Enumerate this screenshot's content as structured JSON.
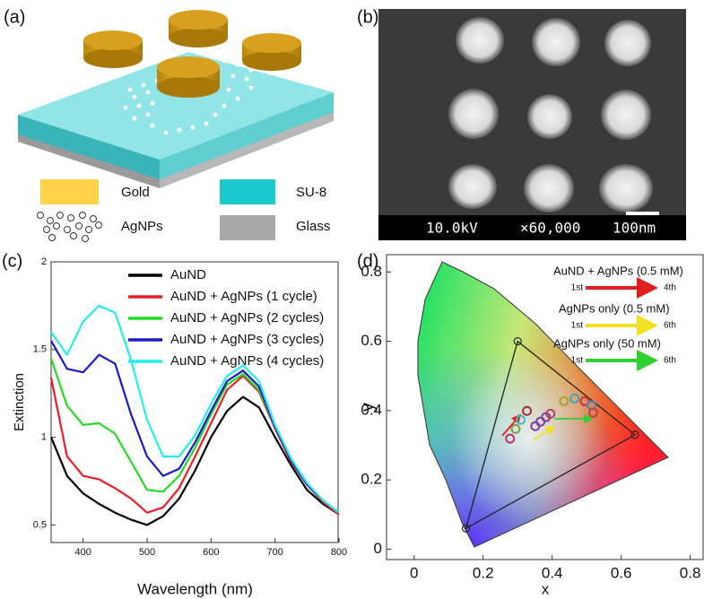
{
  "panels": [
    "(a)",
    "(b)",
    "(c)",
    "(d)"
  ],
  "schematic": {
    "legend": [
      "Gold",
      "SU-8",
      "AgNPs",
      "Glass"
    ]
  },
  "sem": {
    "voltage": "10.0kV",
    "magnification": "×60,000",
    "scale": "100nm"
  },
  "chart_data": [
    {
      "type": "line",
      "xlabel": "Wavelength (nm)",
      "ylabel": "Extinction",
      "x": [
        350,
        375,
        400,
        425,
        450,
        475,
        500,
        525,
        550,
        575,
        600,
        625,
        650,
        675,
        700,
        725,
        750,
        775,
        800
      ],
      "series": [
        {
          "name": "AuND",
          "color": "#000000",
          "values": [
            1.0,
            0.78,
            0.68,
            0.62,
            0.57,
            0.53,
            0.5,
            0.55,
            0.65,
            0.81,
            1.0,
            1.15,
            1.23,
            1.17,
            1.0,
            0.84,
            0.7,
            0.62,
            0.56
          ]
        },
        {
          "name": "AuND + AgNPs (1 cycle)",
          "color": "#ee1c25",
          "values": [
            1.34,
            0.89,
            0.78,
            0.76,
            0.71,
            0.65,
            0.57,
            0.6,
            0.71,
            0.89,
            1.08,
            1.27,
            1.35,
            1.26,
            1.05,
            0.86,
            0.73,
            0.63,
            0.56
          ]
        },
        {
          "name": "AuND + AgNPs (2 cycles)",
          "color": "#22dd22",
          "values": [
            1.45,
            1.18,
            1.07,
            1.08,
            1.02,
            0.86,
            0.7,
            0.69,
            0.78,
            0.94,
            1.13,
            1.3,
            1.36,
            1.27,
            1.06,
            0.87,
            0.73,
            0.64,
            0.57
          ]
        },
        {
          "name": "AuND + AgNPs (3 cycles)",
          "color": "#1a1acc",
          "values": [
            1.55,
            1.39,
            1.37,
            1.47,
            1.42,
            1.13,
            0.89,
            0.78,
            0.82,
            0.97,
            1.15,
            1.32,
            1.38,
            1.29,
            1.06,
            0.87,
            0.73,
            0.64,
            0.57
          ]
        },
        {
          "name": "AuND + AgNPs (4 cycles)",
          "color": "#22eeee",
          "values": [
            1.6,
            1.47,
            1.66,
            1.75,
            1.71,
            1.44,
            1.1,
            0.89,
            0.89,
            1.01,
            1.19,
            1.35,
            1.41,
            1.32,
            1.07,
            0.88,
            0.74,
            0.64,
            0.57
          ]
        }
      ],
      "xlim": [
        350,
        800
      ],
      "ylim": [
        0.4,
        2
      ],
      "xticks": [
        400,
        500,
        600,
        700,
        800
      ],
      "yticks": [
        0.5,
        1,
        1.5,
        2
      ],
      "legend": "upper right"
    },
    {
      "type": "scatter",
      "xlabel": "x",
      "ylabel": "y",
      "x": [
        0.278,
        0.294,
        0.309,
        0.327,
        0.351,
        0.366,
        0.382,
        0.395,
        0.434,
        0.465,
        0.494,
        0.514,
        0.519
      ],
      "y": [
        0.319,
        0.347,
        0.373,
        0.399,
        0.355,
        0.368,
        0.381,
        0.391,
        0.427,
        0.435,
        0.427,
        0.415,
        0.394
      ],
      "colors": [
        "#c03060",
        "#7aa040",
        "#44bbcc",
        "#a03040",
        "#8040a0",
        "#8040a0",
        "#8040a0",
        "#b04060",
        "#b0a030",
        "#33aabb",
        "#d03030",
        "#3a8ad0",
        "#c04040"
      ],
      "gamut": {
        "x": [
          0.3,
          0.64,
          0.15
        ],
        "y": [
          0.6,
          0.33,
          0.06
        ]
      },
      "arrow_legend": [
        {
          "label": "AuND + AgNPs (0.5 mM)",
          "start": "1st",
          "end": "4th",
          "color": "#e02020"
        },
        {
          "label": "AgNPs only (0.5 mM)",
          "start": "1st",
          "end": "6th",
          "color": "#f0e020"
        },
        {
          "label": "AgNPs only (50 mM)",
          "start": "1st",
          "end": "6th",
          "color": "#30d030"
        }
      ],
      "xlim": [
        -0.08,
        0.84
      ],
      "ylim": [
        -0.03,
        0.85
      ],
      "xticks": [
        0,
        0.2,
        0.4,
        0.6,
        0.8
      ],
      "yticks": [
        0,
        0.2,
        0.4,
        0.6,
        0.8
      ]
    }
  ]
}
